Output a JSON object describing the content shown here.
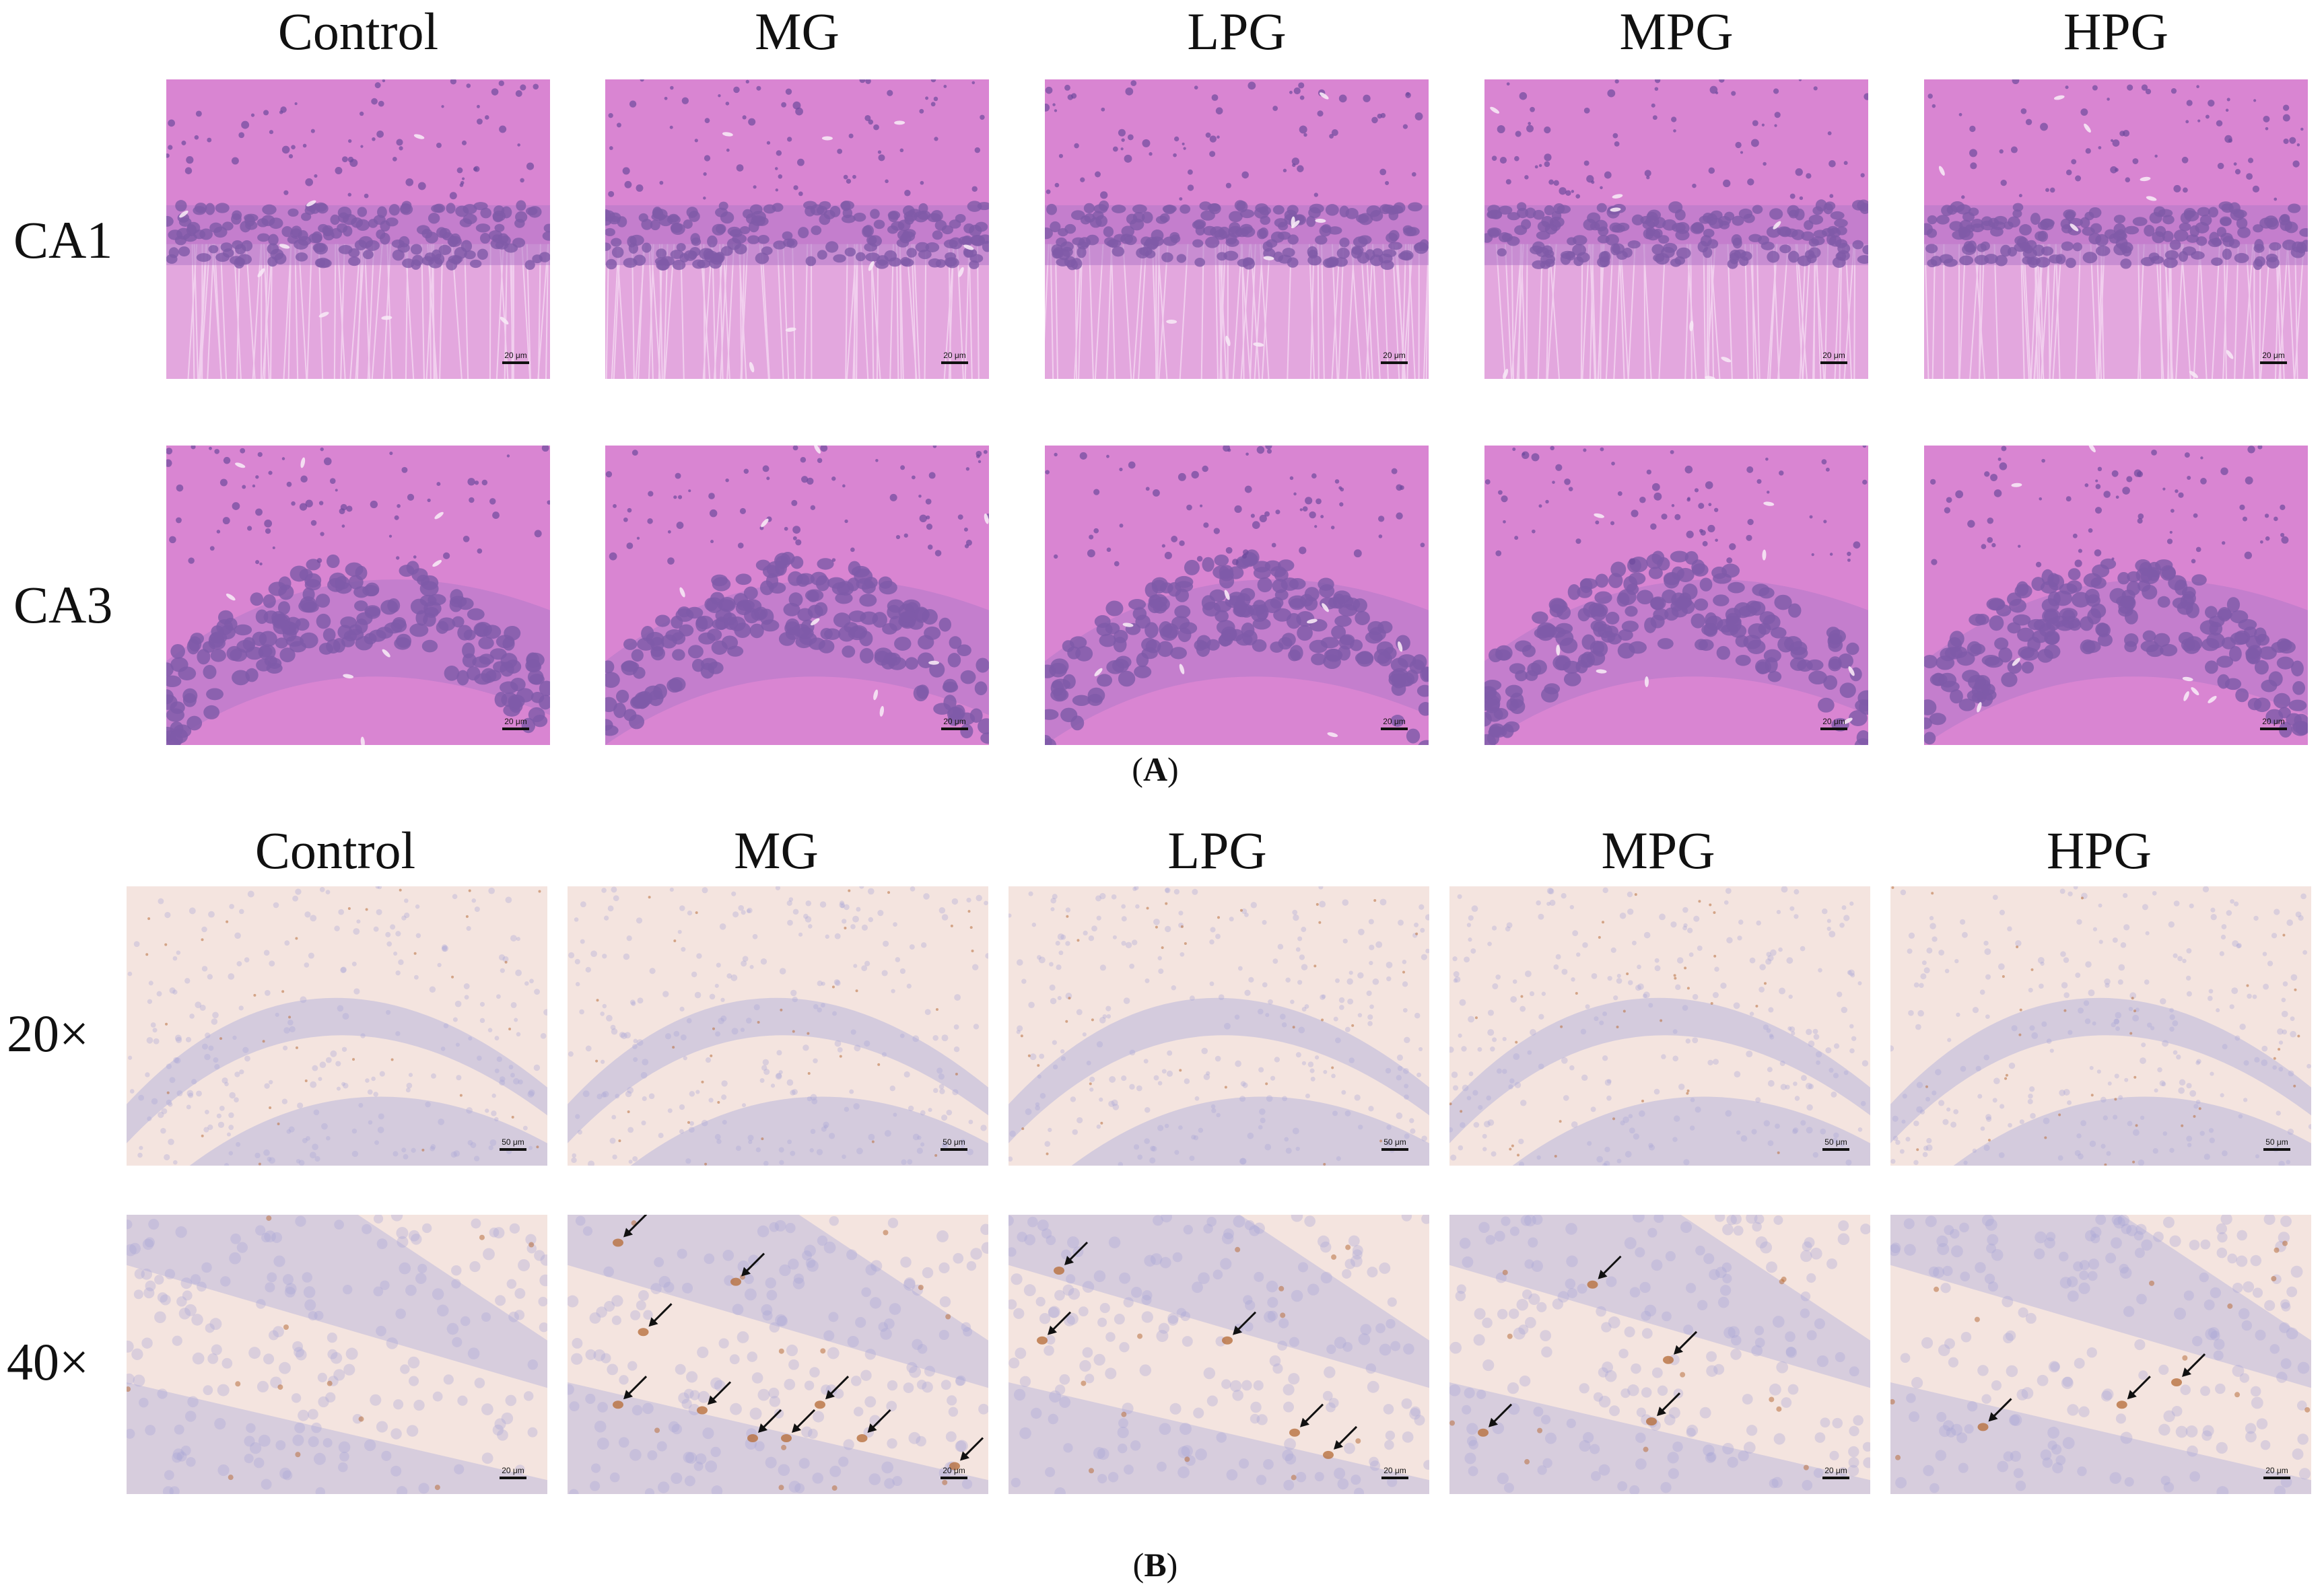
{
  "panel_A": {
    "label_letter": "A",
    "columns": [
      "Control",
      "MG",
      "LPG",
      "MPG",
      "HPG"
    ],
    "rows": [
      "CA1",
      "CA3"
    ],
    "scale_bar": "20 μm"
  },
  "panel_B": {
    "label_letter": "B",
    "columns": [
      "Control",
      "MG",
      "LPG",
      "MPG",
      "HPG"
    ],
    "rows": [
      "20×",
      "40×"
    ],
    "scale_bar_20x": "50 μm",
    "scale_bar_40x": "20 μm"
  },
  "colors": {
    "he_background": "#d985d2",
    "he_nuclei": "#7f5aa8",
    "ihc_background": "#f4e4df",
    "ihc_nuclei": "#b9b6db",
    "ihc_stain": "#b8703e"
  }
}
